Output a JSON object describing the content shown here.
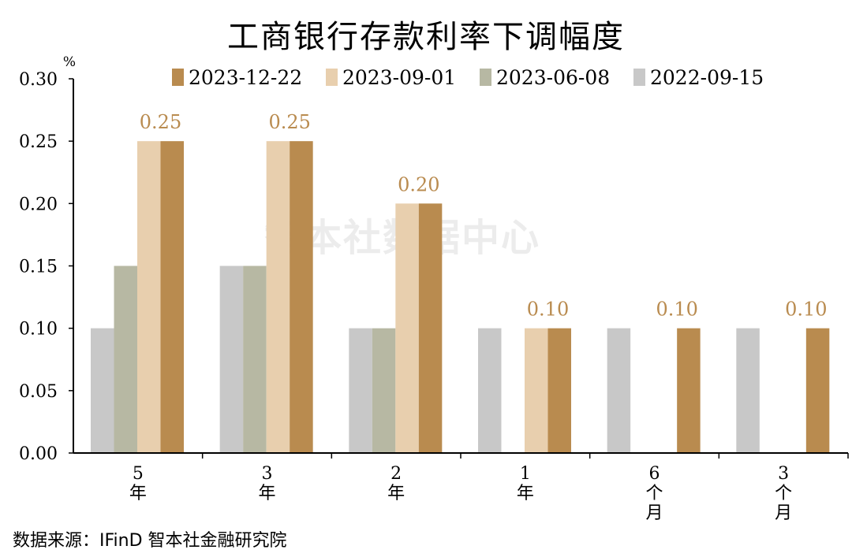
{
  "source": "数据来源：IFinD 智本社金融研究院",
  "watermark": "智本社数据中心",
  "chart_data": {
    "type": "bar",
    "title": "工商银行存款利率下调幅度",
    "ylabel": "%",
    "ylim": [
      0,
      0.3
    ],
    "yticks": [
      "0.00",
      "0.05",
      "0.10",
      "0.15",
      "0.20",
      "0.25",
      "0.30"
    ],
    "categories": [
      "5年",
      "3年",
      "2年",
      "1年",
      "6个月",
      "3个月"
    ],
    "legend_position": "top",
    "grid": false,
    "series": [
      {
        "name": "2022-09-15",
        "color": "#c8c8c8",
        "values": [
          0.1,
          0.15,
          0.1,
          0.1,
          0.1,
          0.1
        ]
      },
      {
        "name": "2023-06-08",
        "color": "#b7b8a3",
        "values": [
          0.15,
          0.15,
          0.1,
          0.0,
          0.0,
          0.0
        ]
      },
      {
        "name": "2023-09-01",
        "color": "#e8cfae",
        "values": [
          0.25,
          0.25,
          0.2,
          0.1,
          0.0,
          0.0
        ]
      },
      {
        "name": "2023-12-22",
        "color": "#b98b4f",
        "values": [
          0.25,
          0.25,
          0.2,
          0.1,
          0.1,
          0.1
        ]
      }
    ],
    "legend_order": [
      "2023-12-22",
      "2023-09-01",
      "2023-06-08",
      "2022-09-15"
    ],
    "data_labels": {
      "series": "2023-12-22",
      "labels": [
        "0.25",
        "0.25",
        "0.20",
        "0.10",
        "0.10",
        "0.10"
      ],
      "color": "#b98b4f"
    }
  }
}
